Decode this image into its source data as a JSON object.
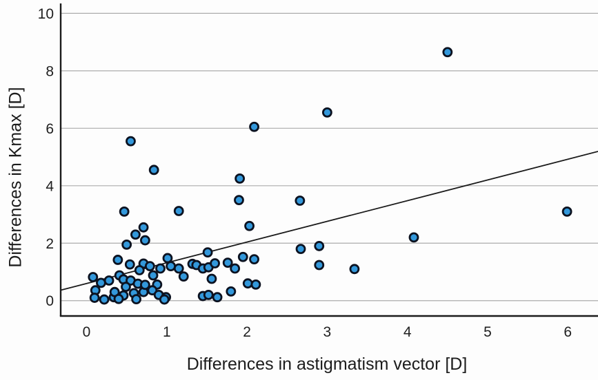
{
  "figure": {
    "type": "scatter-figure",
    "background": "#fdfdfd"
  },
  "chart_data": {
    "type": "scatter",
    "title": "",
    "xlabel": "Differences in astigmatism vector [D]",
    "ylabel": "Differences in Kmax [D]",
    "xlim": [
      -0.3225,
      6.376
    ],
    "ylim": [
      -0.534,
      10.345
    ],
    "x_ticks": [
      0,
      1,
      2,
      3,
      4,
      5,
      6
    ],
    "y_ticks": [
      0,
      2,
      4,
      6,
      8,
      10
    ],
    "grid": "horizontal-only",
    "legend": "none",
    "colors": {
      "marker_fill": "#3398db",
      "marker_stroke": "#0c1220",
      "gridline": "#ababab",
      "axis": "#1a1a1a",
      "trend_line": "#1a1a1a",
      "text": "#1f1f1f"
    },
    "marker": {
      "radius": 6,
      "stroke_width": 2.8
    },
    "trend_line": {
      "x1": -0.3225,
      "y1": 0.364,
      "x2": 6.376,
      "y2": 5.193
    },
    "points": [
      [
        0.47,
        3.1
      ],
      [
        1.15,
        3.12
      ],
      [
        1.9,
        3.5
      ],
      [
        2.66,
        3.48
      ],
      [
        0.55,
        5.55
      ],
      [
        0.84,
        4.55
      ],
      [
        1.91,
        4.25
      ],
      [
        2.09,
        6.05
      ],
      [
        3.0,
        6.55
      ],
      [
        4.5,
        8.65
      ],
      [
        5.99,
        3.1
      ],
      [
        4.08,
        2.2
      ],
      [
        3.34,
        1.1
      ],
      [
        2.9,
        1.9
      ],
      [
        2.67,
        1.8
      ],
      [
        2.9,
        1.24
      ],
      [
        2.03,
        2.6
      ],
      [
        0.71,
        2.55
      ],
      [
        0.61,
        2.3
      ],
      [
        0.73,
        2.1
      ],
      [
        0.5,
        1.95
      ],
      [
        0.39,
        1.42
      ],
      [
        0.54,
        1.26
      ],
      [
        0.71,
        1.29
      ],
      [
        0.66,
        1.06
      ],
      [
        0.08,
        0.82
      ],
      [
        0.18,
        0.62
      ],
      [
        0.28,
        0.7
      ],
      [
        0.11,
        0.36
      ],
      [
        0.1,
        0.1
      ],
      [
        0.22,
        0.04
      ],
      [
        0.34,
        0.12
      ],
      [
        0.41,
        0.88
      ],
      [
        0.46,
        0.74
      ],
      [
        0.55,
        0.7
      ],
      [
        0.64,
        0.59
      ],
      [
        0.49,
        0.48
      ],
      [
        0.35,
        0.3
      ],
      [
        0.46,
        0.18
      ],
      [
        0.59,
        0.26
      ],
      [
        0.71,
        0.3
      ],
      [
        0.4,
        0.06
      ],
      [
        0.62,
        0.05
      ],
      [
        0.73,
        0.55
      ],
      [
        1.01,
        1.48
      ],
      [
        1.05,
        1.2
      ],
      [
        0.92,
        1.12
      ],
      [
        0.83,
        0.88
      ],
      [
        0.79,
        1.2
      ],
      [
        0.88,
        0.56
      ],
      [
        0.82,
        0.36
      ],
      [
        0.9,
        0.2
      ],
      [
        0.99,
        0.12
      ],
      [
        1.15,
        1.12
      ],
      [
        1.21,
        0.84
      ],
      [
        1.32,
        1.28
      ],
      [
        1.37,
        1.24
      ],
      [
        1.45,
        1.12
      ],
      [
        1.52,
        1.16
      ],
      [
        1.51,
        1.68
      ],
      [
        1.45,
        0.16
      ],
      [
        1.52,
        0.2
      ],
      [
        0.97,
        0.04
      ],
      [
        1.56,
        0.76
      ],
      [
        1.6,
        1.3
      ],
      [
        1.76,
        1.32
      ],
      [
        1.95,
        1.52
      ],
      [
        2.09,
        1.44
      ],
      [
        1.85,
        1.12
      ],
      [
        2.01,
        0.6
      ],
      [
        2.11,
        0.56
      ],
      [
        1.8,
        0.32
      ],
      [
        1.63,
        0.12
      ]
    ]
  }
}
